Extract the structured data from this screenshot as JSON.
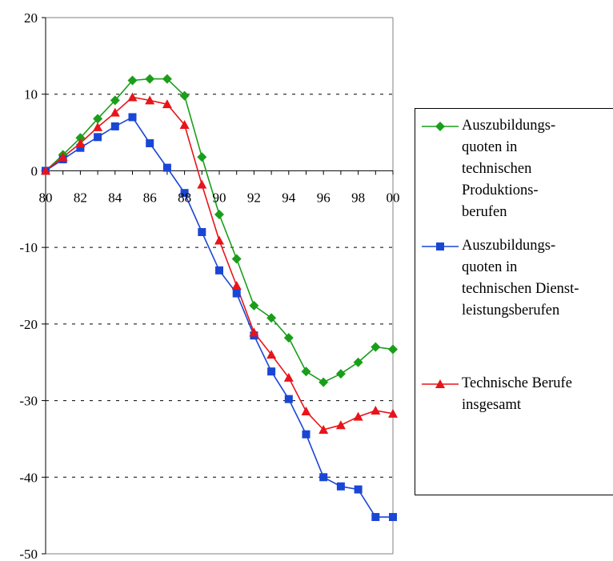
{
  "chart_data": {
    "type": "line",
    "title": "",
    "xlabel": "",
    "ylabel": "",
    "x": [
      80,
      81,
      82,
      83,
      84,
      85,
      86,
      87,
      88,
      89,
      90,
      91,
      92,
      93,
      94,
      95,
      96,
      97,
      98,
      99,
      100
    ],
    "x_tick_labels": [
      "80",
      "82",
      "84",
      "86",
      "88",
      "90",
      "92",
      "94",
      "96",
      "98",
      "00"
    ],
    "y_ticks": [
      20,
      10,
      0,
      -10,
      -20,
      -30,
      -40,
      -50
    ],
    "ylim": [
      -50,
      20
    ],
    "xlim": [
      80,
      100
    ],
    "grid": "horizontal dashed",
    "legend_position": "right",
    "series": [
      {
        "name": "Auszubildungs-\nquoten in\ntechnischen\nProduktions-\nberufen",
        "color": "#1a9e1a",
        "marker": "diamond",
        "values": [
          0,
          2.1,
          4.3,
          6.8,
          9.2,
          11.8,
          12.0,
          12.0,
          9.8,
          1.8,
          -5.7,
          -11.5,
          -17.6,
          -19.2,
          -21.8,
          -26.2,
          -27.6,
          -26.5,
          -25.0,
          -23.0,
          -23.3
        ]
      },
      {
        "name": "Auszubildungs-\nquoten in\ntechnischen Dienst-\nleistungsberufen",
        "color": "#1a46d6",
        "marker": "square",
        "values": [
          0,
          1.5,
          3.0,
          4.4,
          5.8,
          7.0,
          3.6,
          0.4,
          -2.9,
          -8.0,
          -13.0,
          -16.0,
          -21.5,
          -26.2,
          -29.8,
          -34.4,
          -40.0,
          -41.2,
          -41.6,
          -45.2,
          -45.2
        ]
      },
      {
        "name": "Technische Berufe\ninsgesamt",
        "color": "#e8141a",
        "marker": "triangle",
        "values": [
          0,
          1.8,
          3.6,
          5.7,
          7.6,
          9.6,
          9.2,
          8.7,
          6.0,
          -1.8,
          -9.1,
          -15.0,
          -21.1,
          -24.0,
          -27.0,
          -31.4,
          -33.8,
          -33.2,
          -32.1,
          -31.3,
          -31.7
        ]
      }
    ]
  }
}
